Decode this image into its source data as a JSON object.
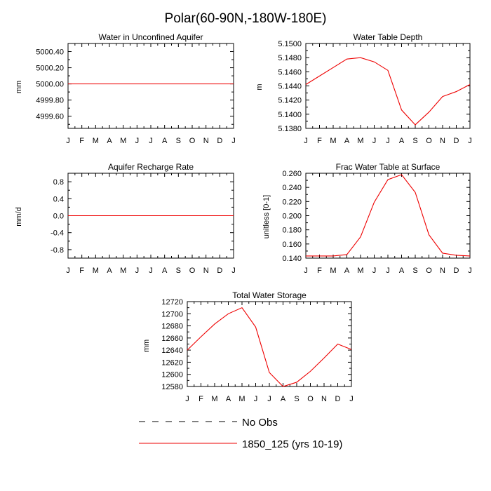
{
  "figure_title": "Polar(60-90N,-180W-180E)",
  "legend": {
    "obs_label": "No Obs",
    "model_label": "1850_125 (yrs 10-19)",
    "obs_color": "#000000",
    "model_color": "#ee0000"
  },
  "chart_data": [
    {
      "id": "p1",
      "type": "line",
      "title": "Water in Unconfined Aquifer",
      "xlabel": "",
      "ylabel": "mm",
      "categories": [
        "J",
        "F",
        "M",
        "A",
        "M",
        "J",
        "J",
        "A",
        "S",
        "O",
        "N",
        "D",
        "J"
      ],
      "ylim": [
        4999.45,
        5000.5
      ],
      "yticks": [
        4999.6,
        4999.8,
        5000.0,
        5000.2,
        5000.4
      ],
      "ytick_labels": [
        "4999.60",
        "4999.80",
        "5000.00",
        "5000.20",
        "5000.40"
      ],
      "series": [
        {
          "name": "1850_125 (yrs 10-19)",
          "values": [
            5000.0,
            5000.0,
            5000.0,
            5000.0,
            5000.0,
            5000.0,
            5000.0,
            5000.0,
            5000.0,
            5000.0,
            5000.0,
            5000.0,
            5000.0
          ]
        }
      ]
    },
    {
      "id": "p2",
      "type": "line",
      "title": "Water Table Depth",
      "xlabel": "",
      "ylabel": "m",
      "categories": [
        "J",
        "F",
        "M",
        "A",
        "M",
        "J",
        "J",
        "A",
        "S",
        "O",
        "N",
        "D",
        "J"
      ],
      "ylim": [
        5.138,
        5.15
      ],
      "yticks": [
        5.138,
        5.14,
        5.142,
        5.144,
        5.146,
        5.148,
        5.15
      ],
      "ytick_labels": [
        "5.1380",
        "5.1400",
        "5.1420",
        "5.1440",
        "5.1460",
        "5.1480",
        "5.1500"
      ],
      "series": [
        {
          "name": "1850_125 (yrs 10-19)",
          "values": [
            5.1442,
            5.1454,
            5.1466,
            5.1478,
            5.148,
            5.1474,
            5.1462,
            5.1406,
            5.1385,
            5.1403,
            5.1425,
            5.1432,
            5.1442
          ]
        }
      ]
    },
    {
      "id": "p3",
      "type": "line",
      "title": "Aquifer Recharge Rate",
      "xlabel": "",
      "ylabel": "mm/d",
      "categories": [
        "J",
        "F",
        "M",
        "A",
        "M",
        "J",
        "J",
        "A",
        "S",
        "O",
        "N",
        "D",
        "J"
      ],
      "ylim": [
        -1.0,
        1.0
      ],
      "yticks": [
        -0.8,
        -0.4,
        0.0,
        0.4,
        0.8
      ],
      "ytick_labels": [
        "-0.8",
        "-0.4",
        "0.0",
        "0.4",
        "0.8"
      ],
      "series": [
        {
          "name": "1850_125 (yrs 10-19)",
          "values": [
            0,
            0,
            0,
            0,
            0,
            0,
            0,
            0,
            0,
            0,
            0,
            0,
            0
          ]
        }
      ]
    },
    {
      "id": "p4",
      "type": "line",
      "title": "Frac Water Table at Surface",
      "xlabel": "",
      "ylabel": "unitless [0-1]",
      "categories": [
        "J",
        "F",
        "M",
        "A",
        "M",
        "J",
        "J",
        "A",
        "S",
        "O",
        "N",
        "D",
        "J"
      ],
      "ylim": [
        0.14,
        0.26
      ],
      "yticks": [
        0.14,
        0.16,
        0.18,
        0.2,
        0.22,
        0.24,
        0.26
      ],
      "ytick_labels": [
        "0.140",
        "0.160",
        "0.180",
        "0.200",
        "0.220",
        "0.240",
        "0.260"
      ],
      "series": [
        {
          "name": "1850_125 (yrs 10-19)",
          "values": [
            0.143,
            0.143,
            0.143,
            0.145,
            0.17,
            0.219,
            0.251,
            0.258,
            0.233,
            0.173,
            0.147,
            0.144,
            0.143
          ]
        }
      ]
    },
    {
      "id": "p5",
      "type": "line",
      "title": "Total Water Storage",
      "xlabel": "",
      "ylabel": "mm",
      "categories": [
        "J",
        "F",
        "M",
        "A",
        "M",
        "J",
        "J",
        "A",
        "S",
        "O",
        "N",
        "D",
        "J"
      ],
      "ylim": [
        12580,
        12720
      ],
      "yticks": [
        12580,
        12600,
        12620,
        12640,
        12660,
        12680,
        12700,
        12720
      ],
      "ytick_labels": [
        "12580",
        "12600",
        "12620",
        "12640",
        "12660",
        "12680",
        "12700",
        "12720"
      ],
      "series": [
        {
          "name": "1850_125 (yrs 10-19)",
          "values": [
            12640,
            12662,
            12683,
            12700,
            12710,
            12678,
            12603,
            12580,
            12587,
            12605,
            12627,
            12650,
            12641
          ]
        }
      ]
    }
  ]
}
